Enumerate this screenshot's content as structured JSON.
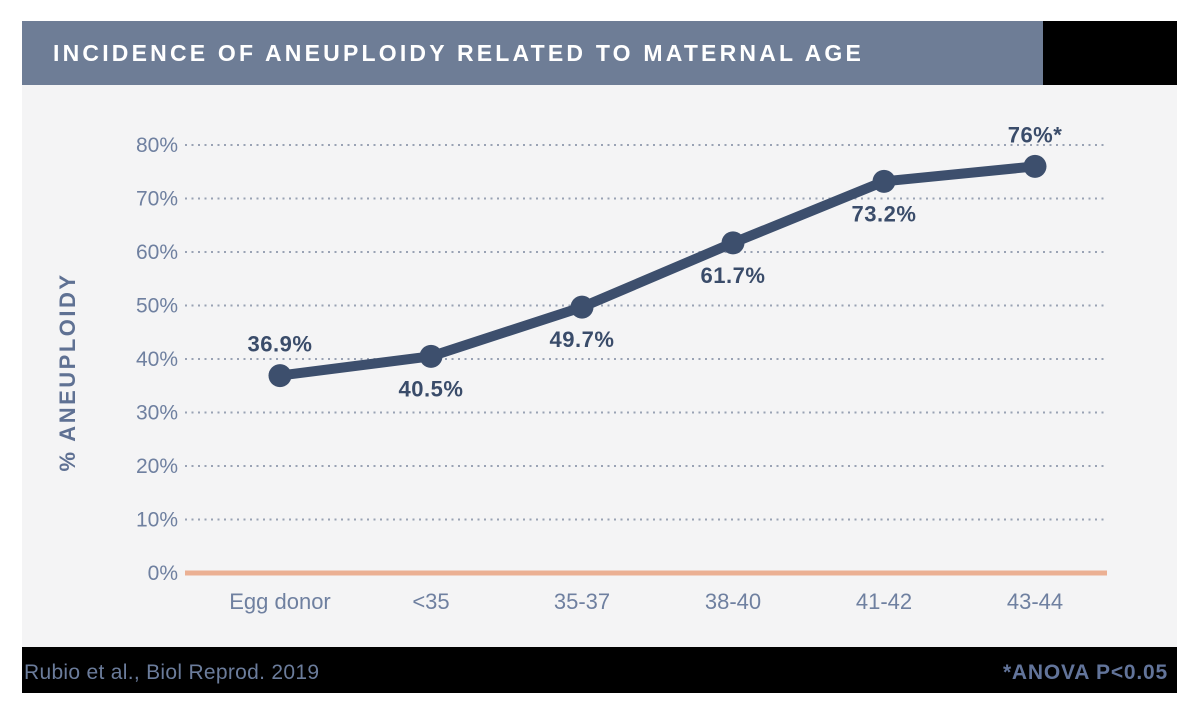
{
  "header": {
    "title": "INCIDENCE OF ANEUPLOIDY RELATED TO MATERNAL AGE"
  },
  "footer": {
    "citation": "Rubio et al., Biol Reprod. 2019",
    "note": "*ANOVA P<0.05"
  },
  "chart_data": {
    "type": "line",
    "title": "INCIDENCE OF ANEUPLOIDY RELATED TO MATERNAL AGE",
    "categories": [
      "Egg donor",
      "<35",
      "35-37",
      "38-40",
      "41-42",
      "43-44"
    ],
    "values": [
      36.9,
      40.5,
      49.7,
      61.7,
      73.2,
      76
    ],
    "point_labels": [
      "36.9%",
      "40.5%",
      "49.7%",
      "61.7%",
      "73.2%",
      "76%*"
    ],
    "point_label_positions": [
      "above",
      "below",
      "below",
      "below",
      "below",
      "above"
    ],
    "xlabel": "",
    "ylabel": "% ANEUPLOIDY",
    "ylim": [
      0,
      80
    ],
    "ytick_step": 10,
    "ytick_suffix": "%",
    "grid": "horizontal dotted gridlines, solid colored baseline at 0%",
    "legend": "none",
    "colors": {
      "line": "#3d4f6d",
      "point": "#3d4f6d",
      "point_label": "#3a4c6a",
      "tick_label": "#6f80a0",
      "axis_title": "#5f7193",
      "gridline": "#99a2b4",
      "baseline": "#ebb093",
      "chart_background": "#f4f4f5",
      "header_background": "#6e7d96",
      "header_text": "#ffffff",
      "footer_background": "#000000",
      "footer_text": "#6b7c9b"
    }
  }
}
